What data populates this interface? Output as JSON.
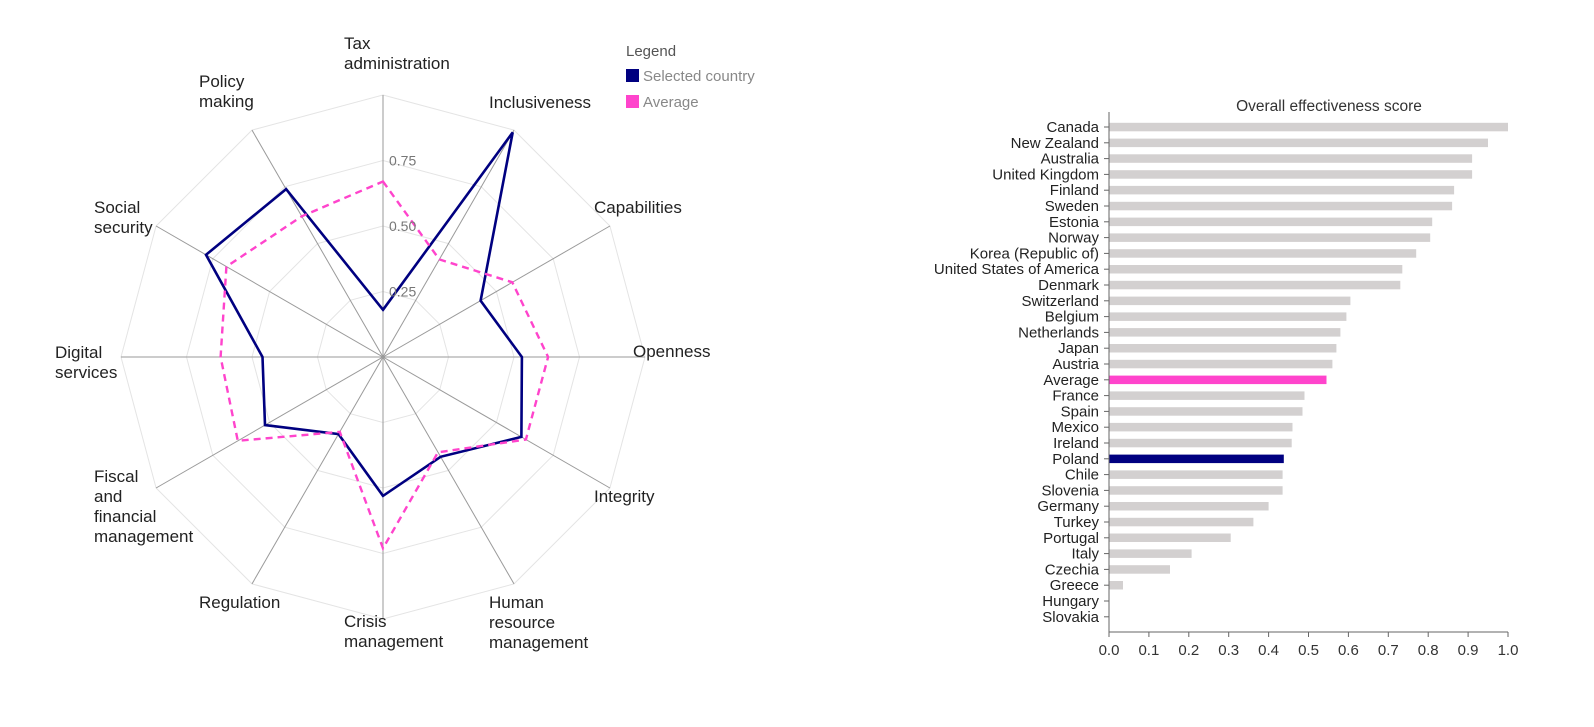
{
  "chart_data": [
    {
      "type": "radar",
      "axes": [
        {
          "label": [
            "Tax",
            "administration"
          ]
        },
        {
          "label": [
            "Inclusiveness"
          ]
        },
        {
          "label": [
            "Capabilities"
          ]
        },
        {
          "label": [
            "Openness"
          ]
        },
        {
          "label": [
            "Integrity"
          ]
        },
        {
          "label": [
            "Human",
            "resource",
            "management"
          ]
        },
        {
          "label": [
            "Crisis",
            "management"
          ]
        },
        {
          "label": [
            "Regulation"
          ]
        },
        {
          "label": [
            "Fiscal",
            "and",
            "financial",
            "management"
          ]
        },
        {
          "label": [
            "Digital",
            "services"
          ]
        },
        {
          "label": [
            "Social",
            "security"
          ]
        },
        {
          "label": [
            "Policy",
            "making"
          ]
        }
      ],
      "range": [
        0,
        1
      ],
      "ring_ticks": [
        "0.25",
        "0.50",
        "0.75"
      ],
      "ring_values": [
        0.25,
        0.5,
        0.75
      ],
      "legend": {
        "title": "Legend",
        "placement": "top-right",
        "items": [
          {
            "name": "Selected country",
            "color": "#000080"
          },
          {
            "name": "Average",
            "color": "#ff44cc"
          }
        ]
      },
      "series": [
        {
          "name": "Selected country",
          "color": "#000080",
          "style": "solid",
          "values": [
            0.18,
            0.99,
            0.43,
            0.53,
            0.61,
            0.44,
            0.53,
            0.34,
            0.52,
            0.46,
            0.78,
            0.74
          ]
        },
        {
          "name": "Average",
          "color": "#ff44cc",
          "style": "dashed",
          "values": [
            0.67,
            0.43,
            0.57,
            0.63,
            0.63,
            0.42,
            0.73,
            0.33,
            0.64,
            0.62,
            0.69,
            0.62
          ]
        }
      ]
    },
    {
      "type": "bar",
      "orientation": "horizontal",
      "title": "Overall effectiveness score",
      "xlim": [
        0,
        1
      ],
      "x_ticks": [
        "0.0",
        "0.1",
        "0.2",
        "0.3",
        "0.4",
        "0.5",
        "0.6",
        "0.7",
        "0.8",
        "0.9",
        "1.0"
      ],
      "default_color": "#d3d0d0",
      "highlight_colors": {
        "Average": "#ff44cc",
        "Poland": "#000080"
      },
      "categories": [
        "Canada",
        "New Zealand",
        "Australia",
        "United Kingdom",
        "Finland",
        "Sweden",
        "Estonia",
        "Norway",
        "Korea (Republic of)",
        "United States of America",
        "Denmark",
        "Switzerland",
        "Belgium",
        "Netherlands",
        "Japan",
        "Austria",
        "Average",
        "France",
        "Spain",
        "Mexico",
        "Ireland",
        "Poland",
        "Chile",
        "Slovenia",
        "Germany",
        "Turkey",
        "Portugal",
        "Italy",
        "Czechia",
        "Greece",
        "Hungary",
        "Slovakia"
      ],
      "values": [
        1.0,
        0.95,
        0.91,
        0.91,
        0.865,
        0.86,
        0.81,
        0.805,
        0.77,
        0.735,
        0.73,
        0.605,
        0.595,
        0.58,
        0.57,
        0.56,
        0.545,
        0.49,
        0.485,
        0.46,
        0.458,
        0.438,
        0.435,
        0.435,
        0.4,
        0.362,
        0.305,
        0.207,
        0.153,
        0.035,
        0.0,
        0.0
      ]
    }
  ]
}
